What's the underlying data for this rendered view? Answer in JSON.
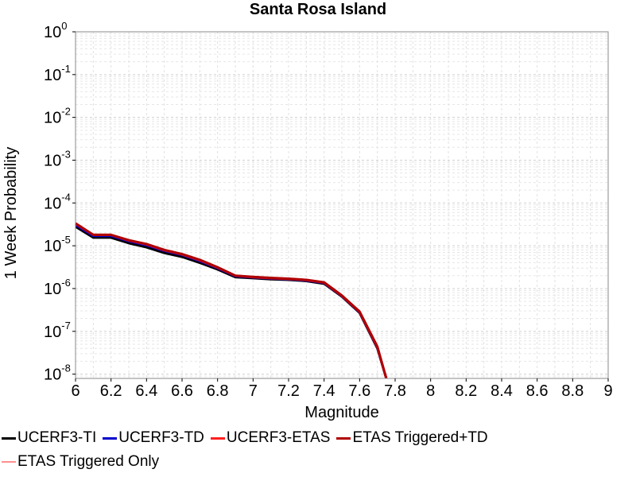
{
  "chart_data": {
    "type": "line",
    "title": "Santa Rosa Island",
    "xlabel": "Magnitude",
    "ylabel": "1 Week Probability",
    "xlim": [
      6,
      9
    ],
    "ylim_log10": [
      -8.1,
      0
    ],
    "y_scale": "log",
    "grid": true,
    "legend_position": "bottom",
    "x_ticks": [
      "6",
      "6.2",
      "6.4",
      "6.6",
      "6.8",
      "7",
      "7.2",
      "7.4",
      "7.6",
      "7.8",
      "8",
      "8.2",
      "8.4",
      "8.6",
      "8.8",
      "9"
    ],
    "y_ticks": [
      {
        "base": "10",
        "exp": "0"
      },
      {
        "base": "10",
        "exp": "-1"
      },
      {
        "base": "10",
        "exp": "-2"
      },
      {
        "base": "10",
        "exp": "-3"
      },
      {
        "base": "10",
        "exp": "-4"
      },
      {
        "base": "10",
        "exp": "-5"
      },
      {
        "base": "10",
        "exp": "-6"
      },
      {
        "base": "10",
        "exp": "-7"
      },
      {
        "base": "10",
        "exp": "-8"
      }
    ],
    "series": [
      {
        "name": "UCERF3-TI",
        "color": "#000000",
        "width": 3,
        "x": [
          6.0,
          6.1,
          6.2,
          6.3,
          6.4,
          6.5,
          6.6,
          6.7,
          6.8,
          6.9,
          7.0,
          7.1,
          7.2,
          7.3,
          7.4,
          7.5,
          7.6,
          7.7,
          7.75
        ],
        "y": [
          2.8e-05,
          1.55e-05,
          1.55e-05,
          1.15e-05,
          9.2e-06,
          6.8e-06,
          5.5e-06,
          4e-06,
          2.8e-06,
          1.85e-06,
          1.75e-06,
          1.65e-06,
          1.6e-06,
          1.5e-06,
          1.3e-06,
          6.5e-07,
          2.7e-07,
          4e-08,
          8e-09
        ]
      },
      {
        "name": "UCERF3-TD",
        "color": "#0000cc",
        "width": 3,
        "x": [
          6.0,
          6.1,
          6.2,
          6.3,
          6.4,
          6.5,
          6.6,
          6.7,
          6.8,
          6.9,
          7.0,
          7.1,
          7.2,
          7.3,
          7.4,
          7.5,
          7.6,
          7.7,
          7.75
        ],
        "y": [
          3.1e-05,
          1.7e-05,
          1.7e-05,
          1.28e-05,
          1.03e-05,
          7.6e-06,
          6.1e-06,
          4.4e-06,
          3e-06,
          1.95e-06,
          1.82e-06,
          1.72e-06,
          1.65e-06,
          1.55e-06,
          1.35e-06,
          6.7e-07,
          2.8e-07,
          4.2e-08,
          8e-09
        ]
      },
      {
        "name": "UCERF3-ETAS",
        "color": "#ff2020",
        "width": 3,
        "x": [
          6.0,
          6.1,
          6.2,
          6.3,
          6.4,
          6.5,
          6.6,
          6.7,
          6.8,
          6.9,
          7.0,
          7.1,
          7.2,
          7.3,
          7.4,
          7.5,
          7.6,
          7.7,
          7.75
        ],
        "y": [
          3.3e-05,
          1.8e-05,
          1.8e-05,
          1.33e-05,
          1.08e-05,
          7.9e-06,
          6.3e-06,
          4.6e-06,
          3.1e-06,
          2e-06,
          1.85e-06,
          1.75e-06,
          1.68e-06,
          1.58e-06,
          1.38e-06,
          6.8e-07,
          2.85e-07,
          4.3e-08,
          8e-09
        ]
      },
      {
        "name": "ETAS Triggered+TD",
        "color": "#b00000",
        "width": 3,
        "x": [
          6.0,
          6.1,
          6.2,
          6.3,
          6.4,
          6.5,
          6.6,
          6.7,
          6.8,
          6.9,
          7.0,
          7.1,
          7.2,
          7.3,
          7.4,
          7.5,
          7.6,
          7.7,
          7.75
        ],
        "y": [
          3.35e-05,
          1.8e-05,
          1.8e-05,
          1.35e-05,
          1.1e-05,
          8e-06,
          6.4e-06,
          4.7e-06,
          3.15e-06,
          2e-06,
          1.88e-06,
          1.78e-06,
          1.7e-06,
          1.6e-06,
          1.4e-06,
          6.9e-07,
          2.9e-07,
          4.4e-08,
          8e-09
        ]
      },
      {
        "name": "ETAS Triggered Only",
        "color": "#ff9090",
        "width": 1.5,
        "x": [],
        "y": []
      }
    ]
  }
}
